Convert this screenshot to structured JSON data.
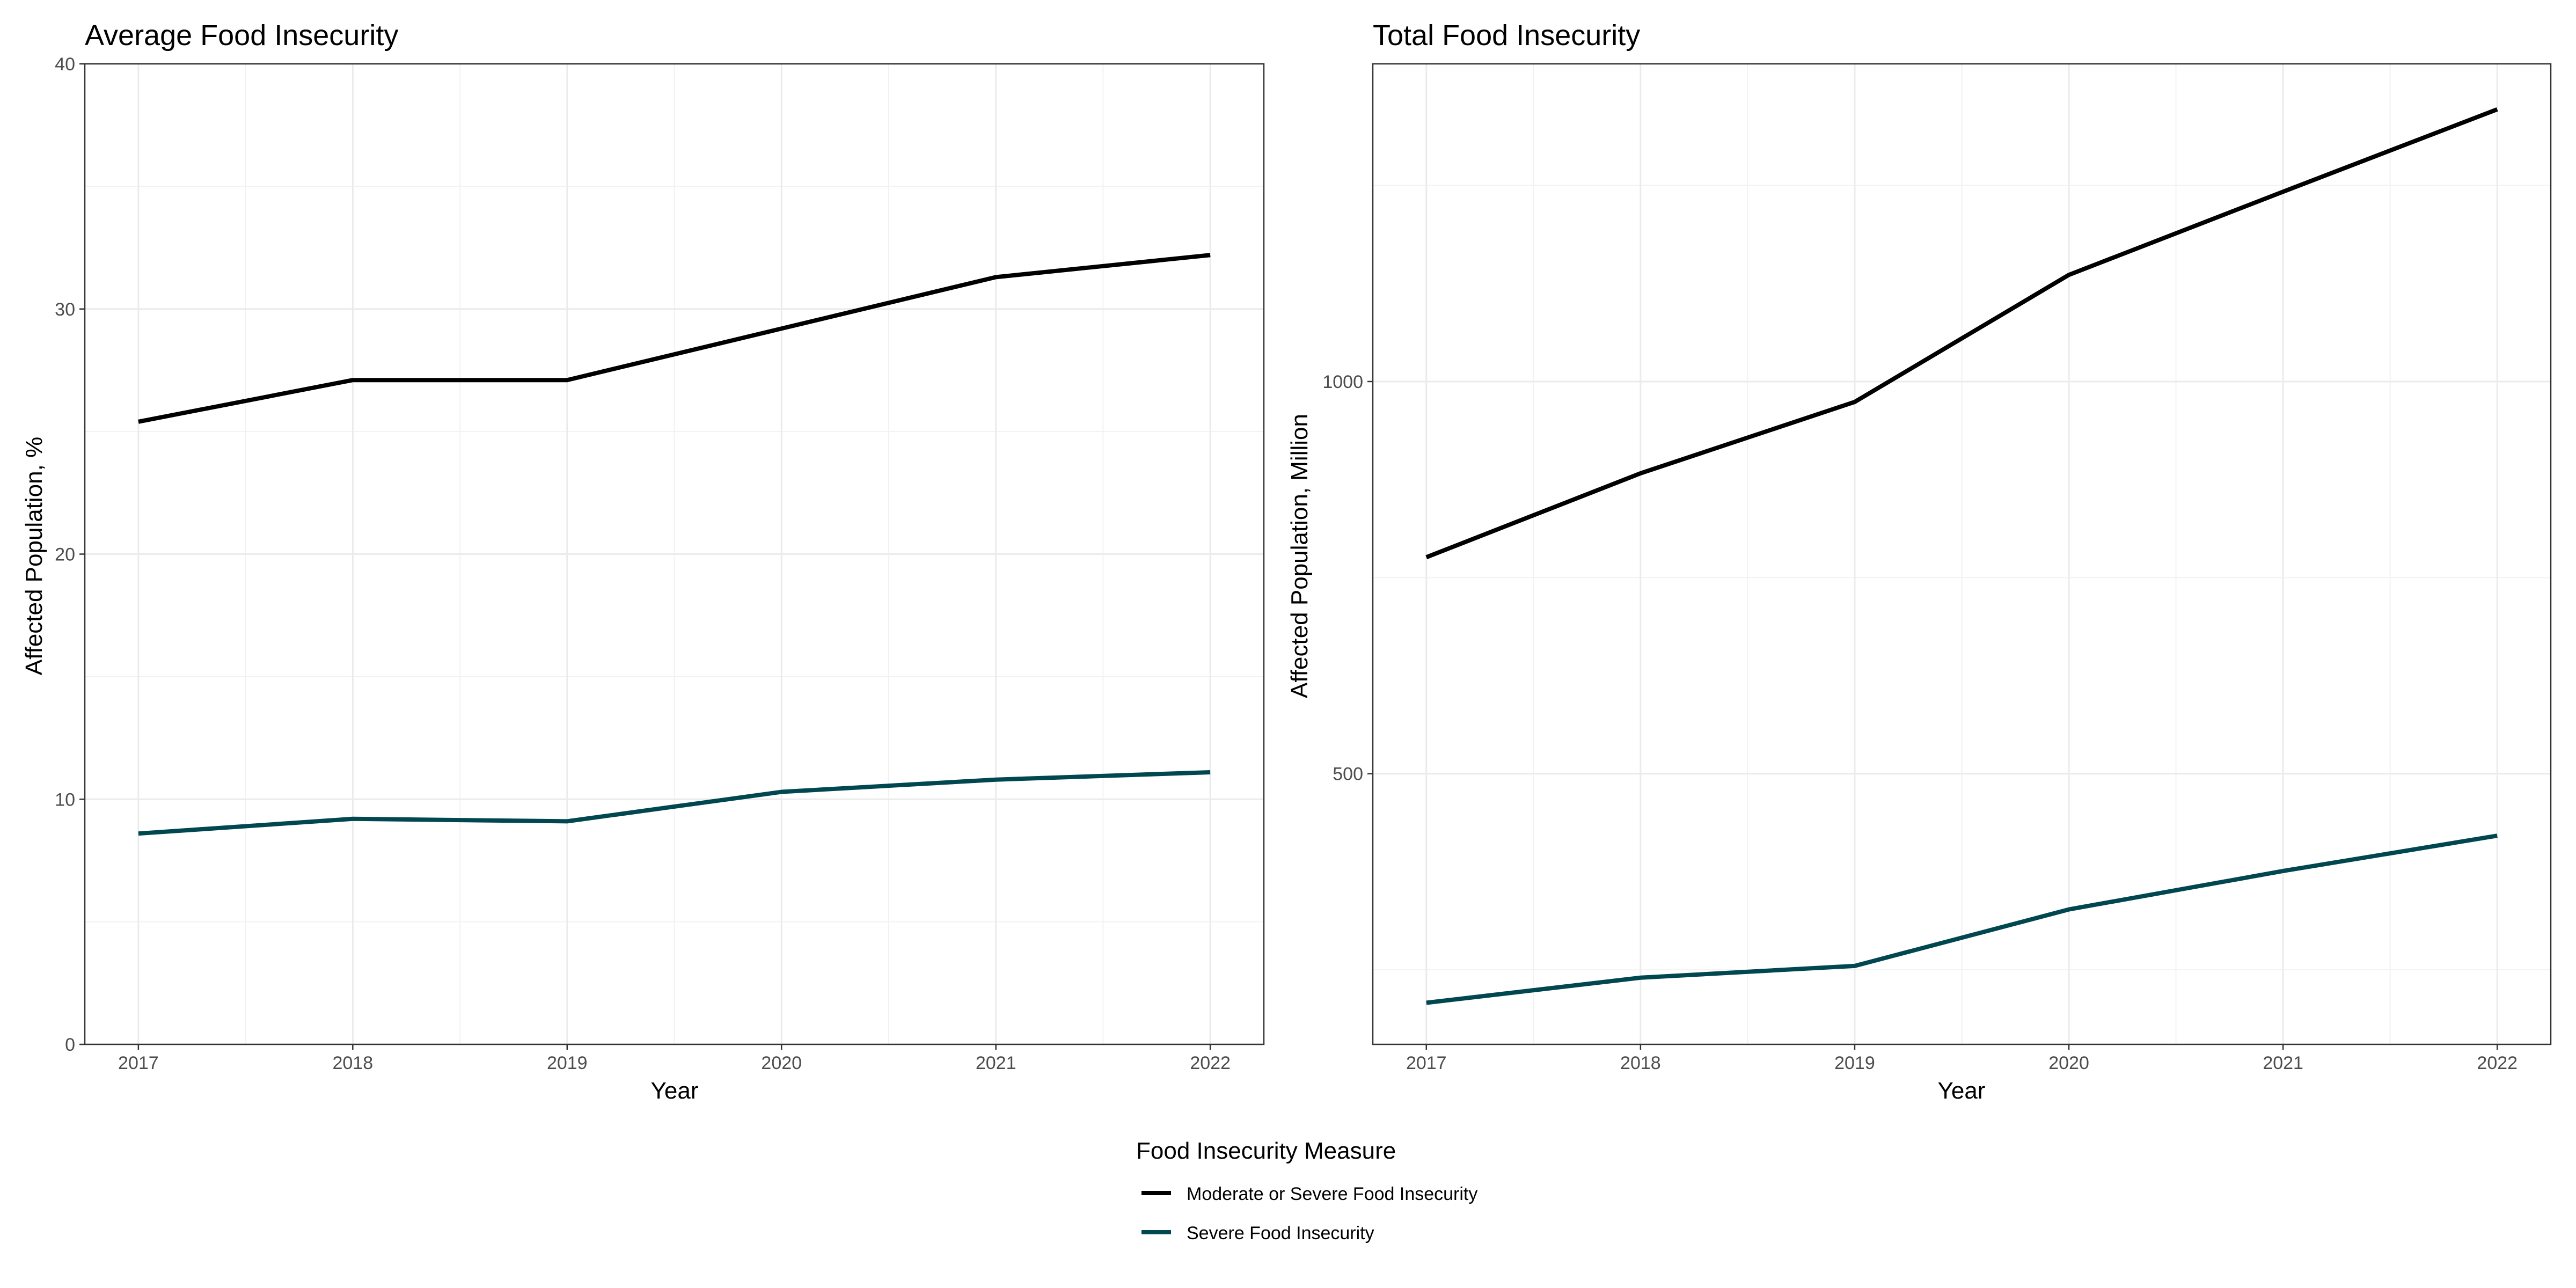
{
  "chart_data": [
    {
      "type": "line",
      "title": "Average Food Insecurity",
      "xlabel": "Year",
      "ylabel": "Affected Population, %",
      "x": [
        2017,
        2018,
        2019,
        2020,
        2021,
        2022
      ],
      "x_ticks": [
        "2017",
        "2018",
        "2019",
        "2020",
        "2021",
        "2022"
      ],
      "xlim": [
        2016.75,
        2022.25
      ],
      "ylim": [
        0,
        40
      ],
      "y_ticks": [
        0,
        10,
        20,
        30,
        40
      ],
      "grid": true,
      "series": [
        {
          "name": "Moderate or Severe Food Insecurity",
          "color": "#000000",
          "values": [
            25.4,
            27.1,
            27.1,
            29.2,
            31.3,
            32.2
          ]
        },
        {
          "name": "Severe Food Insecurity",
          "color": "#00474f",
          "values": [
            8.6,
            9.2,
            9.1,
            10.3,
            10.8,
            11.1
          ]
        }
      ]
    },
    {
      "type": "line",
      "title": "Total Food Insecurity",
      "xlabel": "Year",
      "ylabel": "Affected Population, Million",
      "x": [
        2017,
        2018,
        2019,
        2020,
        2021,
        2022
      ],
      "x_ticks": [
        "2017",
        "2018",
        "2019",
        "2020",
        "2021",
        "2022"
      ],
      "xlim": [
        2016.75,
        2022.25
      ],
      "ylim": [
        155,
        1405
      ],
      "y_ticks": [
        500,
        1000
      ],
      "grid": true,
      "series": [
        {
          "name": "Moderate or Severe Food Insecurity",
          "color": "#000000",
          "values": [
            776,
            883,
            974,
            1136,
            1242,
            1347
          ]
        },
        {
          "name": "Severe Food Insecurity",
          "color": "#00474f",
          "values": [
            208,
            240,
            255,
            327,
            376,
            421
          ]
        }
      ]
    }
  ],
  "legend": {
    "position": "bottom",
    "title": "Food Insecurity Measure",
    "items": [
      {
        "label": "Moderate or Severe Food Insecurity",
        "color": "#000000"
      },
      {
        "label": "Severe Food Insecurity",
        "color": "#00474f"
      }
    ]
  }
}
